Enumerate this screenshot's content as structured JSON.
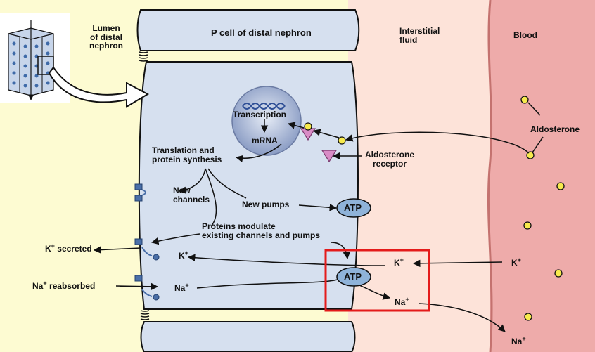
{
  "regions": {
    "lumen": "Lumen\nof distal\nnephron",
    "cell": "P cell of distal nephron",
    "interstitial": "Interstitial\nfluid",
    "blood": "Blood"
  },
  "labels": {
    "transcription": "Transcription",
    "mrna": "mRNA",
    "translation": "Translation and\nprotein synthesis",
    "new_channels": "New\nchannels",
    "new_pumps": "New pumps",
    "proteins_modulate": "Proteins modulate\nexisting channels and pumps",
    "aldosterone": "Aldosterone",
    "aldosterone_receptor": "Aldosterone\nreceptor",
    "k_secreted": "secreted",
    "na_reabsorbed": "reabsorbed",
    "atp": "ATP"
  },
  "ions": {
    "k_base": "K",
    "na_base": "Na",
    "plus": "+"
  },
  "colors": {
    "lumen_bg": "#fdfbd2",
    "interstitial_bg": "#fde3d9",
    "blood_bg": "#eeabaa",
    "cell_fill": "#d6e0ef",
    "nucleus": "#a9b8d6",
    "atp_fill": "#8fb3d9",
    "receptor": "#d98cc6",
    "hormone": "#f7ea4d",
    "highlight": "#e41b1b",
    "channel": "#4a6fa8"
  },
  "icons": [
    "tubule-cutaway-icon",
    "dna-helix-icon",
    "aldosterone-molecule-icon",
    "receptor-triangle-icon",
    "channel-icon",
    "pump-icon"
  ]
}
